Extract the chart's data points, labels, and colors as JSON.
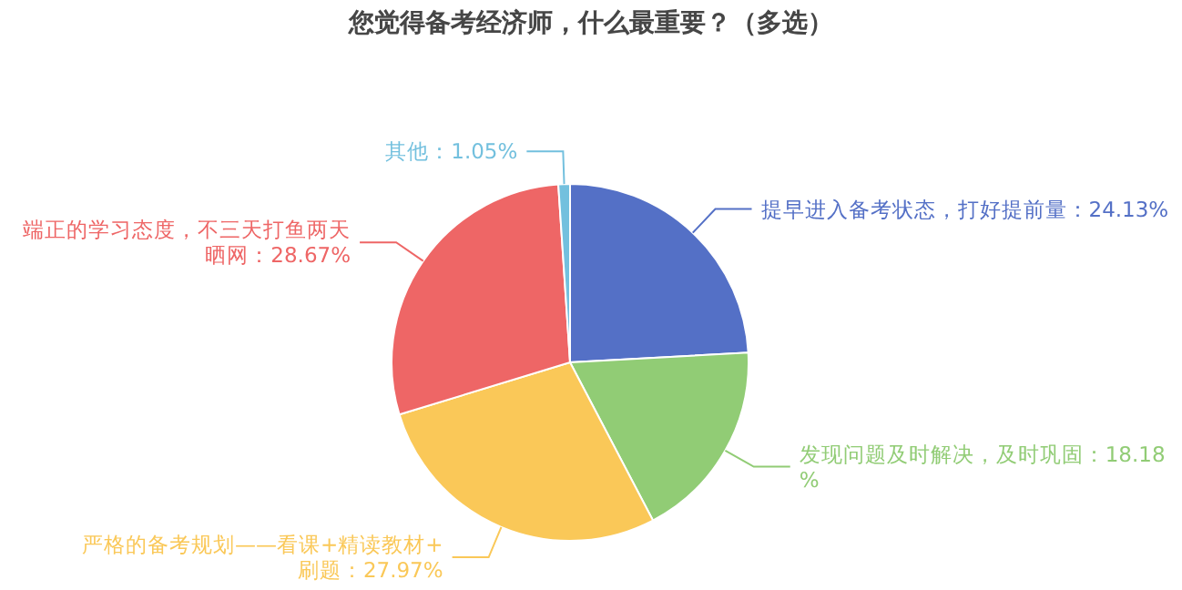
{
  "chart_data": {
    "type": "pie",
    "title": "您觉得备考经济师，什么最重要？（多选）",
    "categories": [
      "提早进入备考状态，打好提前量：24.13%",
      "发现问题及时解决，及时巩固：18.18%",
      "严格的备考规划——看课+精读教材+刷题：27.97%",
      "端正的学习态度，不三天打鱼两天晒网：28.67%",
      "其他：1.05%"
    ],
    "values": [
      24.13,
      18.18,
      27.97,
      28.67,
      1.05
    ],
    "colors": [
      "#5470c6",
      "#91cc75",
      "#fac858",
      "#ee6666",
      "#73c0de"
    ],
    "legend": false
  }
}
